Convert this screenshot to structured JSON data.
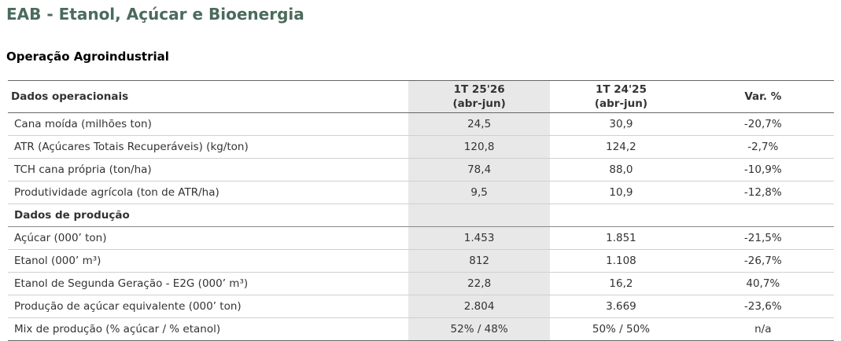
{
  "header": {
    "title": "EAB - Etanol, Açúcar e Bioenergia",
    "subtitle": "Operação Agroindustrial"
  },
  "table": {
    "columns": [
      "Dados operacionais",
      "1T 25'26\n(abr-jun)",
      "1T 24'25\n(abr-jun)",
      "Var. %"
    ],
    "rows": [
      [
        "Cana moída (milhões ton)",
        "24,5",
        "30,9",
        "-20,7%"
      ],
      [
        "ATR (Açúcares Totais Recuperáveis) (kg/ton)",
        "120,8",
        "124,2",
        "-2,7%"
      ],
      [
        "TCH cana própria (ton/ha)",
        "78,4",
        "88,0",
        "-10,9%"
      ],
      [
        "Produtividade agrícola (ton de ATR/ha)",
        "9,5",
        "10,9",
        "-12,8%"
      ],
      [
        "Dados de produção"
      ],
      [
        "Açúcar (000’ ton)",
        "1.453",
        "1.851",
        "-21,5%"
      ],
      [
        "Etanol (000’ m³)",
        "812",
        "1.108",
        "-26,7%"
      ],
      [
        "Etanol de Segunda Geração - E2G (000’ m³)",
        "22,8",
        "16,2",
        "40,7%"
      ],
      [
        "Produção de açúcar equivalente (000’ ton)",
        "2.804",
        "3.669",
        "-23,6%"
      ],
      [
        "Mix de produção (% açúcar / % etanol)",
        "52% / 48%",
        "50% / 50%",
        "n/a"
      ]
    ]
  }
}
